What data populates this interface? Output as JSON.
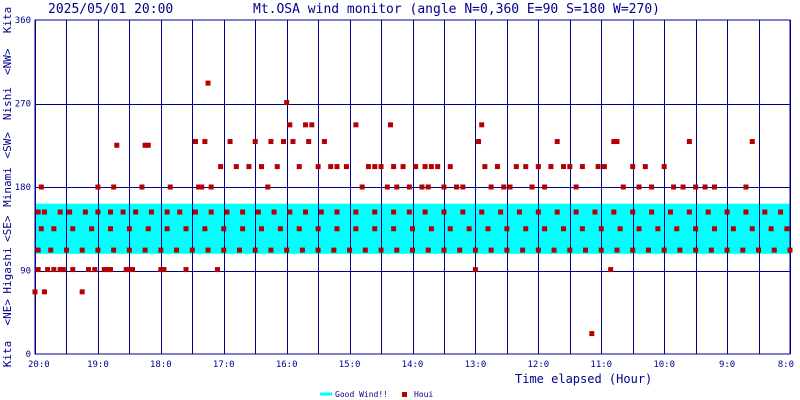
{
  "header": {
    "datetime": "2025/05/01 20:00",
    "title": "Mt.OSA wind monitor (angle N=0,360 E=90 S=180 W=270)"
  },
  "chart_data": {
    "type": "scatter",
    "title": "Mt.OSA wind monitor (angle N=0,360 E=90 S=180 W=270)",
    "xlabel": "Time elapsed (Hour)",
    "ylabel": "",
    "ylim": [
      0,
      360
    ],
    "xlim": [
      20,
      8
    ],
    "x_ticks": [
      "20:0",
      "19:0",
      "18:0",
      "17:0",
      "16:0",
      "15:0",
      "14:0",
      "13:0",
      "12:0",
      "11:0",
      "10:0",
      "9:0",
      "8:0"
    ],
    "y_ticks": [
      "0",
      "90",
      "180",
      "270",
      "360"
    ],
    "y_direction_labels": [
      "Kita",
      "<NE>",
      "Higashi",
      "<SE>",
      "Minami",
      "<SW>",
      "Nishi",
      "<NW>",
      "Kita"
    ],
    "grid": true,
    "legend_position": "bottom-center",
    "good_wind_band": [
      108,
      162
    ],
    "colors": {
      "grid": "#00008b",
      "band": "#00ffff",
      "points": "#b40000",
      "text": "#00008b"
    },
    "series": [
      {
        "name": "Houi",
        "points": [
          [
            20.0,
            67
          ],
          [
            19.95,
            91
          ],
          [
            19.9,
            180
          ],
          [
            19.85,
            67
          ],
          [
            19.8,
            91
          ],
          [
            19.7,
            91
          ],
          [
            19.6,
            91
          ],
          [
            19.55,
            91
          ],
          [
            19.4,
            91
          ],
          [
            19.25,
            67
          ],
          [
            19.15,
            91
          ],
          [
            19.05,
            91
          ],
          [
            19.0,
            180
          ],
          [
            18.9,
            91
          ],
          [
            18.85,
            91
          ],
          [
            18.8,
            91
          ],
          [
            18.75,
            180
          ],
          [
            18.7,
            225
          ],
          [
            18.55,
            91
          ],
          [
            18.5,
            91
          ],
          [
            18.45,
            91
          ],
          [
            18.3,
            180
          ],
          [
            18.25,
            225
          ],
          [
            18.2,
            225
          ],
          [
            18.0,
            91
          ],
          [
            17.95,
            91
          ],
          [
            17.85,
            180
          ],
          [
            17.6,
            91
          ],
          [
            17.45,
            229
          ],
          [
            17.4,
            180
          ],
          [
            17.35,
            180
          ],
          [
            17.3,
            229
          ],
          [
            17.25,
            292
          ],
          [
            17.2,
            180
          ],
          [
            17.1,
            91
          ],
          [
            17.05,
            202
          ],
          [
            16.9,
            229
          ],
          [
            16.8,
            202
          ],
          [
            16.6,
            202
          ],
          [
            16.5,
            229
          ],
          [
            16.4,
            202
          ],
          [
            16.3,
            180
          ],
          [
            16.25,
            229
          ],
          [
            16.15,
            202
          ],
          [
            16.05,
            229
          ],
          [
            16.0,
            271
          ],
          [
            15.95,
            247
          ],
          [
            15.9,
            229
          ],
          [
            15.8,
            202
          ],
          [
            15.7,
            247
          ],
          [
            15.65,
            229
          ],
          [
            15.6,
            247
          ],
          [
            15.5,
            202
          ],
          [
            15.4,
            229
          ],
          [
            15.3,
            202
          ],
          [
            15.2,
            202
          ],
          [
            15.05,
            202
          ],
          [
            14.9,
            247
          ],
          [
            14.8,
            180
          ],
          [
            14.7,
            202
          ],
          [
            14.6,
            202
          ],
          [
            14.5,
            202
          ],
          [
            14.4,
            180
          ],
          [
            14.35,
            247
          ],
          [
            14.3,
            202
          ],
          [
            14.25,
            180
          ],
          [
            14.15,
            202
          ],
          [
            14.05,
            180
          ],
          [
            13.95,
            202
          ],
          [
            13.85,
            180
          ],
          [
            13.8,
            202
          ],
          [
            13.75,
            180
          ],
          [
            13.7,
            202
          ],
          [
            13.6,
            202
          ],
          [
            13.5,
            180
          ],
          [
            13.4,
            202
          ],
          [
            13.3,
            180
          ],
          [
            13.2,
            180
          ],
          [
            13.0,
            91
          ],
          [
            12.95,
            229
          ],
          [
            12.9,
            247
          ],
          [
            12.85,
            202
          ],
          [
            12.75,
            180
          ],
          [
            12.65,
            202
          ],
          [
            12.55,
            180
          ],
          [
            12.45,
            180
          ],
          [
            12.35,
            202
          ],
          [
            12.2,
            202
          ],
          [
            12.1,
            180
          ],
          [
            12.0,
            202
          ],
          [
            11.9,
            180
          ],
          [
            11.8,
            202
          ],
          [
            11.7,
            229
          ],
          [
            11.6,
            202
          ],
          [
            11.5,
            202
          ],
          [
            11.4,
            180
          ],
          [
            11.3,
            202
          ],
          [
            11.15,
            22
          ],
          [
            11.05,
            202
          ],
          [
            10.95,
            202
          ],
          [
            10.85,
            91
          ],
          [
            10.8,
            229
          ],
          [
            10.75,
            229
          ],
          [
            10.65,
            180
          ],
          [
            10.5,
            202
          ],
          [
            10.4,
            180
          ],
          [
            10.3,
            202
          ],
          [
            10.2,
            180
          ],
          [
            10.0,
            202
          ],
          [
            9.85,
            180
          ],
          [
            9.7,
            180
          ],
          [
            9.6,
            229
          ],
          [
            9.5,
            180
          ],
          [
            9.35,
            180
          ],
          [
            9.2,
            180
          ],
          [
            8.7,
            180
          ],
          [
            8.6,
            229
          ],
          [
            19.95,
            153
          ],
          [
            19.85,
            153
          ],
          [
            19.6,
            153
          ],
          [
            19.45,
            153
          ],
          [
            19.2,
            153
          ],
          [
            19.0,
            153
          ],
          [
            18.8,
            153
          ],
          [
            18.6,
            153
          ],
          [
            18.4,
            153
          ],
          [
            18.15,
            153
          ],
          [
            17.9,
            153
          ],
          [
            17.7,
            153
          ],
          [
            17.45,
            153
          ],
          [
            17.2,
            153
          ],
          [
            16.95,
            153
          ],
          [
            16.7,
            153
          ],
          [
            16.45,
            153
          ],
          [
            16.2,
            153
          ],
          [
            15.95,
            153
          ],
          [
            15.7,
            153
          ],
          [
            15.45,
            153
          ],
          [
            15.2,
            153
          ],
          [
            14.9,
            153
          ],
          [
            14.6,
            153
          ],
          [
            14.3,
            153
          ],
          [
            14.05,
            153
          ],
          [
            13.8,
            153
          ],
          [
            13.5,
            153
          ],
          [
            13.2,
            153
          ],
          [
            12.9,
            153
          ],
          [
            12.6,
            153
          ],
          [
            12.3,
            153
          ],
          [
            12.0,
            153
          ],
          [
            11.7,
            153
          ],
          [
            11.4,
            153
          ],
          [
            11.1,
            153
          ],
          [
            10.8,
            153
          ],
          [
            10.5,
            153
          ],
          [
            10.2,
            153
          ],
          [
            9.9,
            153
          ],
          [
            9.6,
            153
          ],
          [
            9.3,
            153
          ],
          [
            9.0,
            153
          ],
          [
            8.7,
            153
          ],
          [
            8.4,
            153
          ],
          [
            8.15,
            153
          ],
          [
            19.9,
            135
          ],
          [
            19.7,
            135
          ],
          [
            19.4,
            135
          ],
          [
            19.1,
            135
          ],
          [
            18.8,
            135
          ],
          [
            18.5,
            135
          ],
          [
            18.2,
            135
          ],
          [
            17.9,
            135
          ],
          [
            17.6,
            135
          ],
          [
            17.3,
            135
          ],
          [
            17.0,
            135
          ],
          [
            16.7,
            135
          ],
          [
            16.4,
            135
          ],
          [
            16.1,
            135
          ],
          [
            15.8,
            135
          ],
          [
            15.5,
            135
          ],
          [
            15.2,
            135
          ],
          [
            14.9,
            135
          ],
          [
            14.6,
            135
          ],
          [
            14.3,
            135
          ],
          [
            14.0,
            135
          ],
          [
            13.7,
            135
          ],
          [
            13.4,
            135
          ],
          [
            13.1,
            135
          ],
          [
            12.8,
            135
          ],
          [
            12.5,
            135
          ],
          [
            12.2,
            135
          ],
          [
            11.9,
            135
          ],
          [
            11.6,
            135
          ],
          [
            11.3,
            135
          ],
          [
            11.0,
            135
          ],
          [
            10.7,
            135
          ],
          [
            10.4,
            135
          ],
          [
            10.1,
            135
          ],
          [
            9.8,
            135
          ],
          [
            9.5,
            135
          ],
          [
            9.2,
            135
          ],
          [
            8.9,
            135
          ],
          [
            8.6,
            135
          ],
          [
            8.3,
            135
          ],
          [
            8.05,
            135
          ],
          [
            19.95,
            112
          ],
          [
            19.75,
            112
          ],
          [
            19.5,
            112
          ],
          [
            19.25,
            112
          ],
          [
            19.0,
            112
          ],
          [
            18.75,
            112
          ],
          [
            18.5,
            112
          ],
          [
            18.25,
            112
          ],
          [
            18.0,
            112
          ],
          [
            17.75,
            112
          ],
          [
            17.5,
            112
          ],
          [
            17.25,
            112
          ],
          [
            17.0,
            112
          ],
          [
            16.75,
            112
          ],
          [
            16.5,
            112
          ],
          [
            16.25,
            112
          ],
          [
            16.0,
            112
          ],
          [
            15.75,
            112
          ],
          [
            15.5,
            112
          ],
          [
            15.25,
            112
          ],
          [
            15.0,
            112
          ],
          [
            14.75,
            112
          ],
          [
            14.5,
            112
          ],
          [
            14.25,
            112
          ],
          [
            14.0,
            112
          ],
          [
            13.75,
            112
          ],
          [
            13.5,
            112
          ],
          [
            13.25,
            112
          ],
          [
            13.0,
            112
          ],
          [
            12.75,
            112
          ],
          [
            12.5,
            112
          ],
          [
            12.25,
            112
          ],
          [
            12.0,
            112
          ],
          [
            11.75,
            112
          ],
          [
            11.5,
            112
          ],
          [
            11.25,
            112
          ],
          [
            11.0,
            112
          ],
          [
            10.75,
            112
          ],
          [
            10.5,
            112
          ],
          [
            10.25,
            112
          ],
          [
            10.0,
            112
          ],
          [
            9.75,
            112
          ],
          [
            9.5,
            112
          ],
          [
            9.25,
            112
          ],
          [
            9.0,
            112
          ],
          [
            8.75,
            112
          ],
          [
            8.5,
            112
          ],
          [
            8.25,
            112
          ],
          [
            8.0,
            112
          ]
        ]
      }
    ]
  },
  "legend": {
    "items": [
      {
        "label": "Good Wind!!",
        "color": "#00ffff",
        "kind": "line"
      },
      {
        "label": "Houi",
        "color": "#b40000",
        "kind": "square"
      }
    ]
  }
}
